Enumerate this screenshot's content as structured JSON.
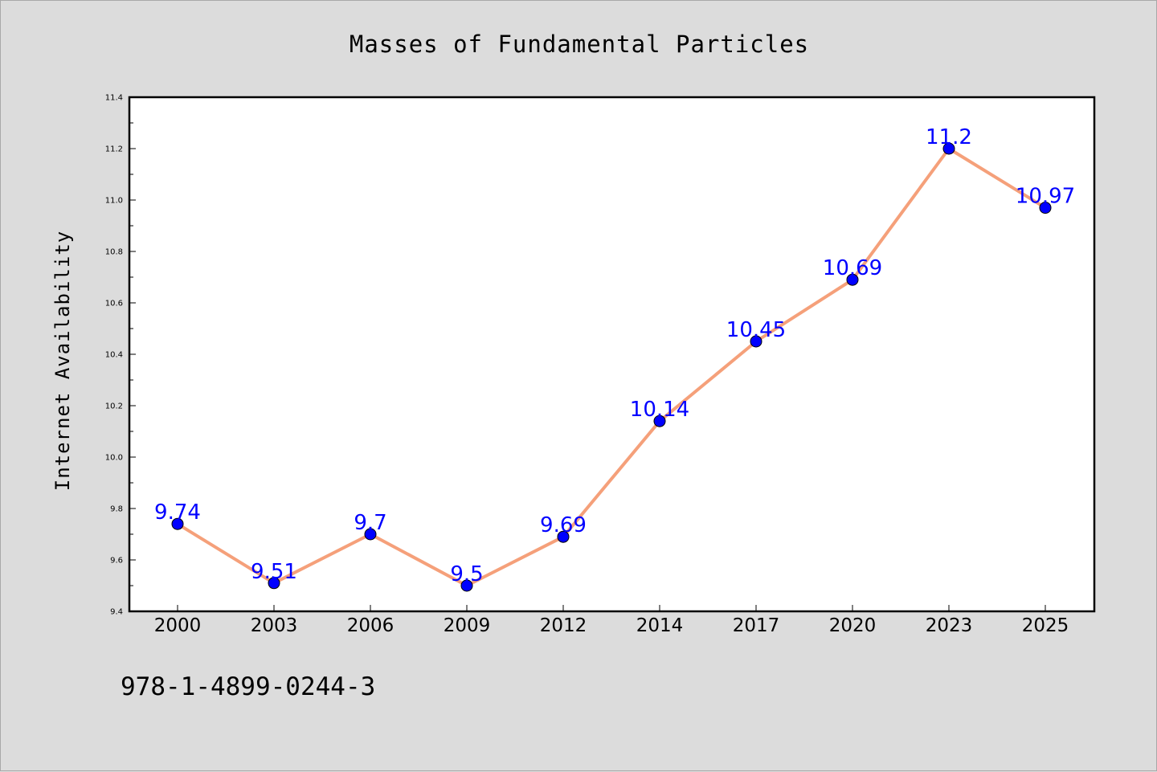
{
  "chart_data": {
    "type": "line",
    "title": "Masses of Fundamental Particles",
    "xlabel": "",
    "ylabel": "Internet Availability",
    "categories": [
      "2000",
      "2003",
      "2006",
      "2009",
      "2012",
      "2014",
      "2017",
      "2020",
      "2023",
      "2025"
    ],
    "series": [
      {
        "values": [
          9.74,
          9.51,
          9.7,
          9.5,
          9.69,
          10.14,
          10.45,
          10.69,
          11.2,
          10.97
        ],
        "data_labels": [
          "9.74",
          "9.51",
          "9.7",
          "9.5",
          "9.69",
          "10.14",
          "10.45",
          "10.69",
          "11.2",
          "10.97"
        ],
        "line_color": "#f5a07a",
        "marker_color": "#0000ff"
      }
    ],
    "ylim": [
      9.4,
      11.4
    ],
    "yticks": [
      "9.4",
      "9.6",
      "9.8",
      "10.0",
      "10.2",
      "10.4",
      "10.6",
      "10.8",
      "11.0",
      "11.2",
      "11.4"
    ],
    "grid": false,
    "legend": "none"
  },
  "footer_text": "978-1-4899-0244-3",
  "colors": {
    "background": "#dcdcdc",
    "plot_area": "#ffffff",
    "label_text": "#0000ff"
  }
}
